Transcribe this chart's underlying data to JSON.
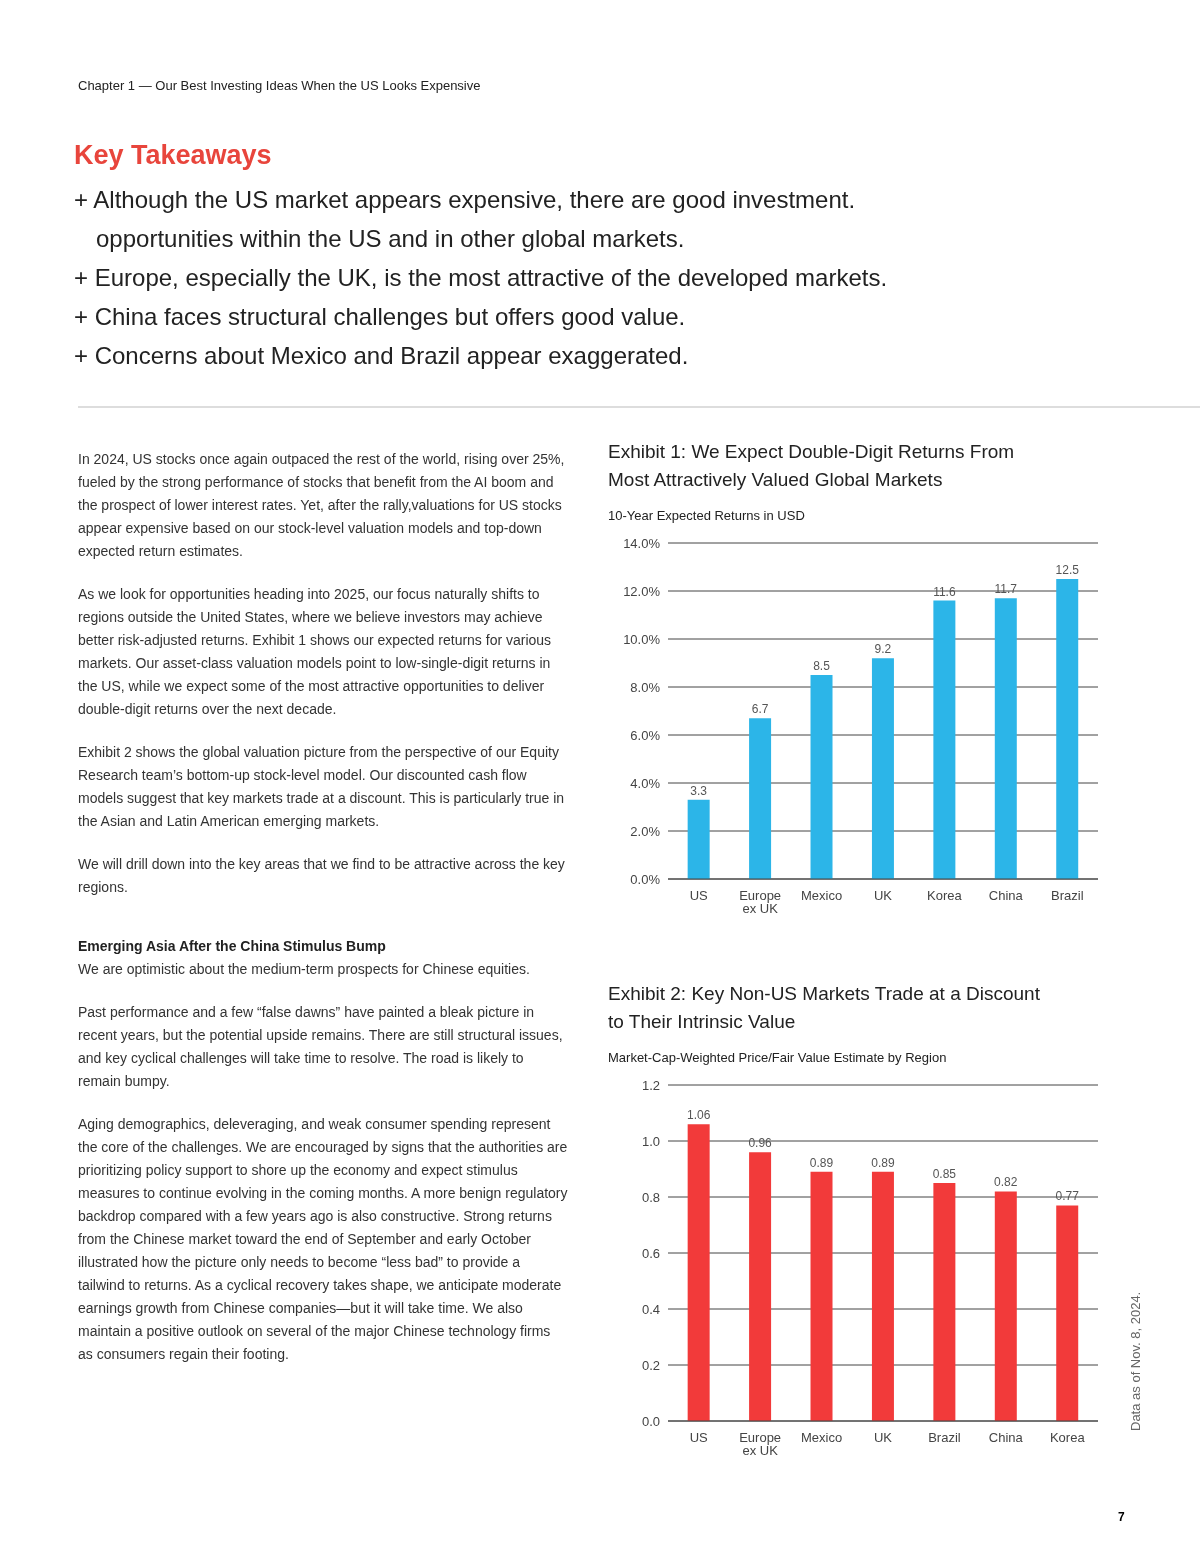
{
  "chart_data": [
    {
      "type": "other",
      "title": "Key Takeaways",
      "annotations": [
        "Chapter 1 — Our Best Investing Ideas When the US Looks Expensive",
        "+ Although the US market appears expensive, there are good investment. opportunities within the US and in other global markets.",
        "+ Europe, especially the UK, is the most attractive of the developed markets.",
        "+ China faces structural challenges but offers good value.",
        "+ Concerns about Mexico and Brazil appear exaggerated.",
        "In 2024, US stocks once again outpaced the rest of the world, rising over 25%, fueled by the strong performance of stocks that benefit from the AI boom and the prospect of lower interest rates. Yet, after the rally,valuations for US stocks appear expensive based on our stock-level valuation models and top-down expected return estimates.",
        "As we look for opportunities heading into 2025, our focus naturally shifts to regions outside the United States, where we believe investors may achieve better risk-adjusted returns. Exhibit 1 shows our expected returns for various markets. Our asset-class valuation models point to low-single-digit returns in the US, while we expect some of the most attractive opportunities to deliver double-digit returns over the next decade.",
        "Exhibit 2 shows the global valuation picture from the perspective of our Equity Research team’s bottom-up stock-level model. Our discounted cash flow models suggest that key markets trade at a discount. This is particularly true in the Asian and Latin American emerging markets.",
        "We will drill down into the key areas that we find to be attractive across the key regions.",
        "Emerging Asia After the China Stimulus Bump",
        "We are optimistic about the medium-term prospects for Chinese equities.",
        "Past performance and a few “false dawns” have painted a bleak picture in recent years, but the potential upside remains. There are still structural issues, and key cyclical challenges will take time to resolve. The road is likely to remain bumpy.",
        "Aging demographics, deleveraging, and weak consumer spending represent the core of the challenges. We are encouraged by signs that the authorities are prioritizing policy support to shore up the economy and expect stimulus measures to continue evolving in the coming months. A more benign regulatory backdrop compared with a few years ago is also constructive. Strong returns from the Chinese market toward the end of September and early October illustrated how the picture only needs to become “less bad” to provide a tailwind to returns. As a cyclical recovery takes shape, we anticipate moderate earnings growth from Chinese companies—but it will take time. We also maintain a positive outlook on several of the major Chinese technology firms as consumers regain their footing.",
        "7"
      ]
    },
    {
      "type": "bar",
      "title": "Exhibit 1: We Expect Double-Digit Returns From Most Attractively Valued Global Markets",
      "subtitle": "10-Year Expected Returns in USD",
      "categories": [
        "US",
        "Europe ex UK",
        "Mexico",
        "UK",
        "Korea",
        "China",
        "Brazil"
      ],
      "values": [
        3.3,
        6.7,
        8.5,
        9.2,
        11.6,
        11.7,
        12.5
      ],
      "color": "#2cb5e8",
      "ylim": [
        0,
        14
      ],
      "yticks": [
        {
          "value": 0,
          "label": "0.0%"
        },
        {
          "value": 2,
          "label": "2.0%"
        },
        {
          "value": 4,
          "label": "4.0%"
        },
        {
          "value": 6,
          "label": "6.0%"
        },
        {
          "value": 8,
          "label": "8.0%"
        },
        {
          "value": 10,
          "label": "10.0%"
        },
        {
          "value": 12,
          "label": "12.0%"
        },
        {
          "value": 14,
          "label": "14.0%"
        }
      ],
      "grid": "y",
      "data_labels": true
    },
    {
      "type": "bar",
      "title": "Exhibit 2: Key Non-US Markets Trade at a Discount to Their Intrinsic Value",
      "subtitle": "Market-Cap-Weighted Price/Fair Value Estimate by Region",
      "categories": [
        "US",
        "Europe ex UK",
        "Mexico",
        "UK",
        "Brazil",
        "China",
        "Korea"
      ],
      "values": [
        1.06,
        0.96,
        0.89,
        0.89,
        0.85,
        0.82,
        0.77
      ],
      "color": "#f23a3a",
      "ylim": [
        0,
        1.2
      ],
      "yticks": [
        {
          "value": 0,
          "label": "0.0"
        },
        {
          "value": 0.2,
          "label": "0.2"
        },
        {
          "value": 0.4,
          "label": "0.4"
        },
        {
          "value": 0.6,
          "label": "0.6"
        },
        {
          "value": 0.8,
          "label": "0.8"
        },
        {
          "value": 1,
          "label": "1.0"
        },
        {
          "value": 1.2,
          "label": "1.2"
        }
      ],
      "grid": "y",
      "data_labels": true,
      "annotations": [
        "Data as of Nov. 8, 2024."
      ]
    }
  ]
}
